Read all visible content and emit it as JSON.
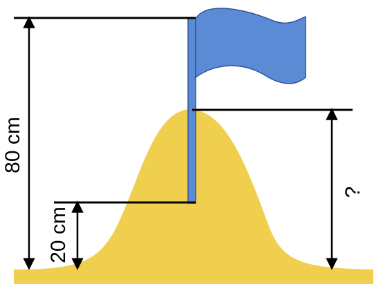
{
  "labels": {
    "total_height": "80 cm",
    "buried_depth": "20 cm",
    "unknown_height": "?"
  },
  "colors": {
    "sand": "#f1cf4e",
    "flag": "#5b8bd5",
    "flag_outline": "#2f5597",
    "line": "#000000"
  },
  "icons": {
    "flag": "flag-icon",
    "sand_mound": "sand-mound-shape"
  }
}
